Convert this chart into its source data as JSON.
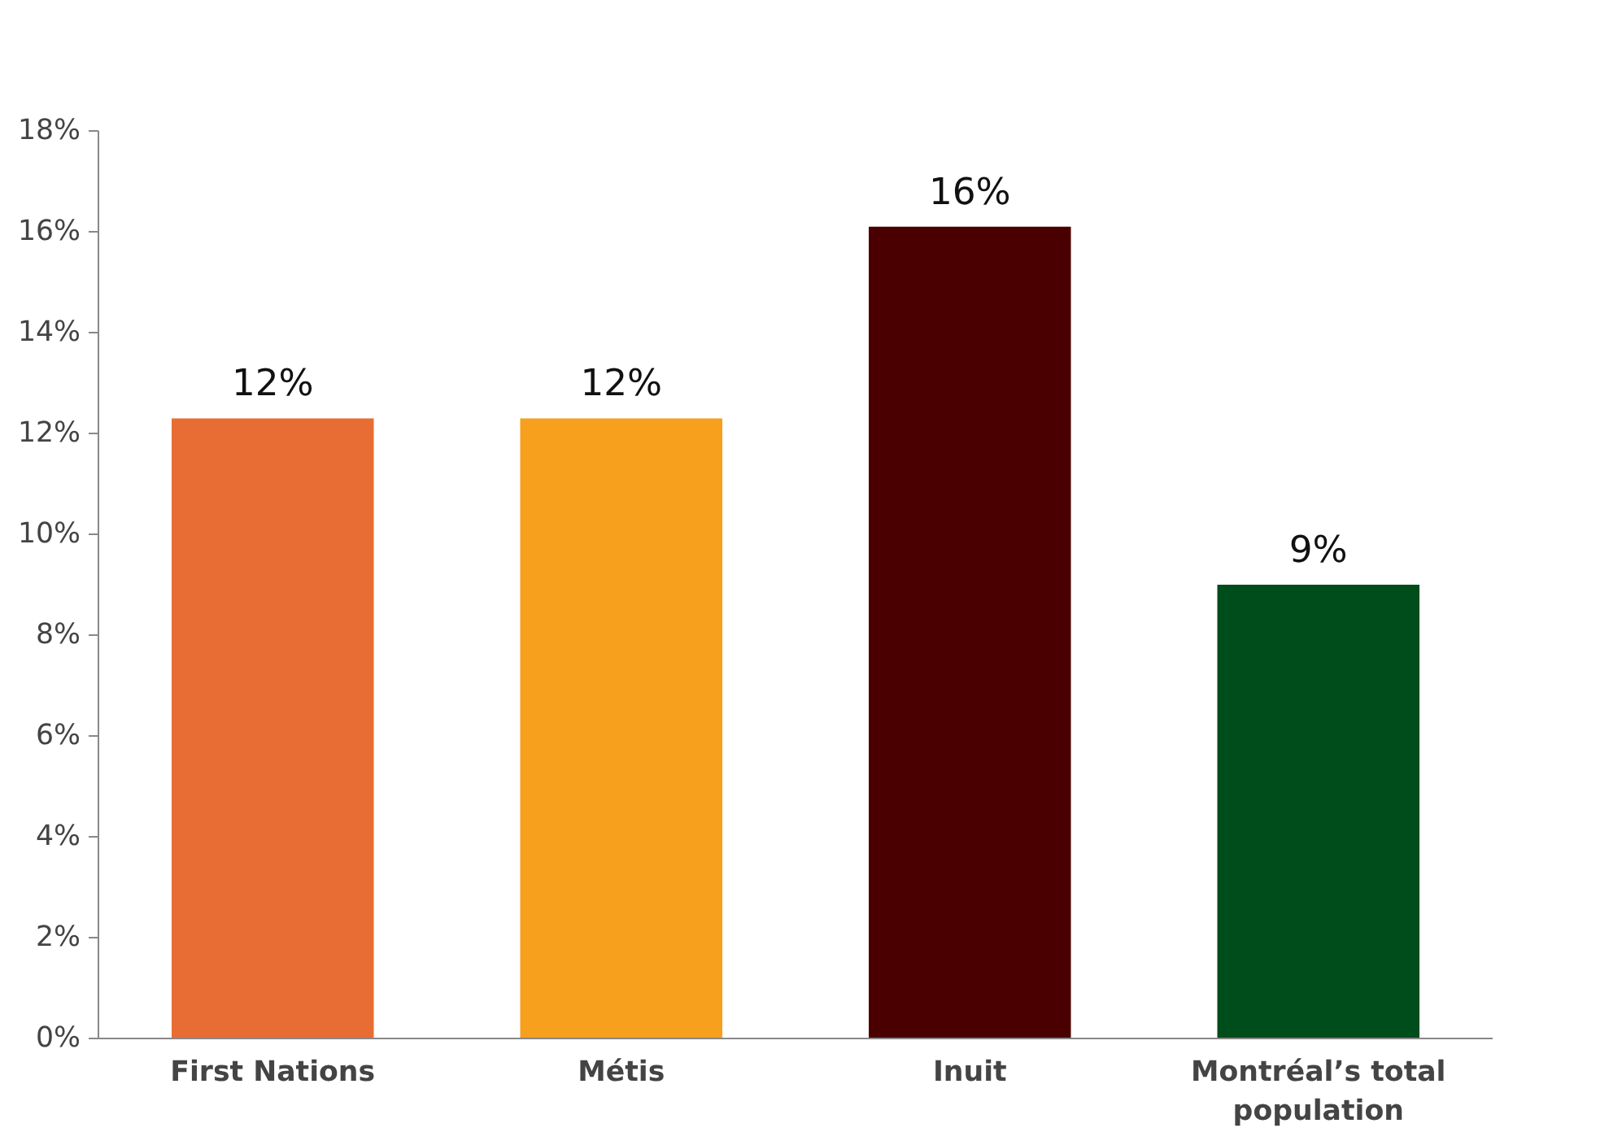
{
  "chart_data": {
    "type": "bar",
    "categories": [
      "First Nations",
      "Métis",
      "Inuit",
      "Montréal’s total population"
    ],
    "values": [
      12.3,
      12.3,
      16.1,
      9.0
    ],
    "colors": [
      "#e86d34",
      "#f6a01e",
      "#4a0000",
      "#004d1c"
    ],
    "value_labels": [
      "12%",
      "12%",
      "16%",
      "9%"
    ],
    "ylim": [
      0,
      18
    ],
    "yticks": [
      {
        "value": 0,
        "label": "0%"
      },
      {
        "value": 2,
        "label": "2%"
      },
      {
        "value": 4,
        "label": "4%"
      },
      {
        "value": 6,
        "label": "6%"
      },
      {
        "value": 8,
        "label": "8%"
      },
      {
        "value": 10,
        "label": "10%"
      },
      {
        "value": 12,
        "label": "12%"
      },
      {
        "value": 14,
        "label": "14%"
      },
      {
        "value": 16,
        "label": "16%"
      },
      {
        "value": 18,
        "label": "18%"
      }
    ],
    "grid": false
  }
}
